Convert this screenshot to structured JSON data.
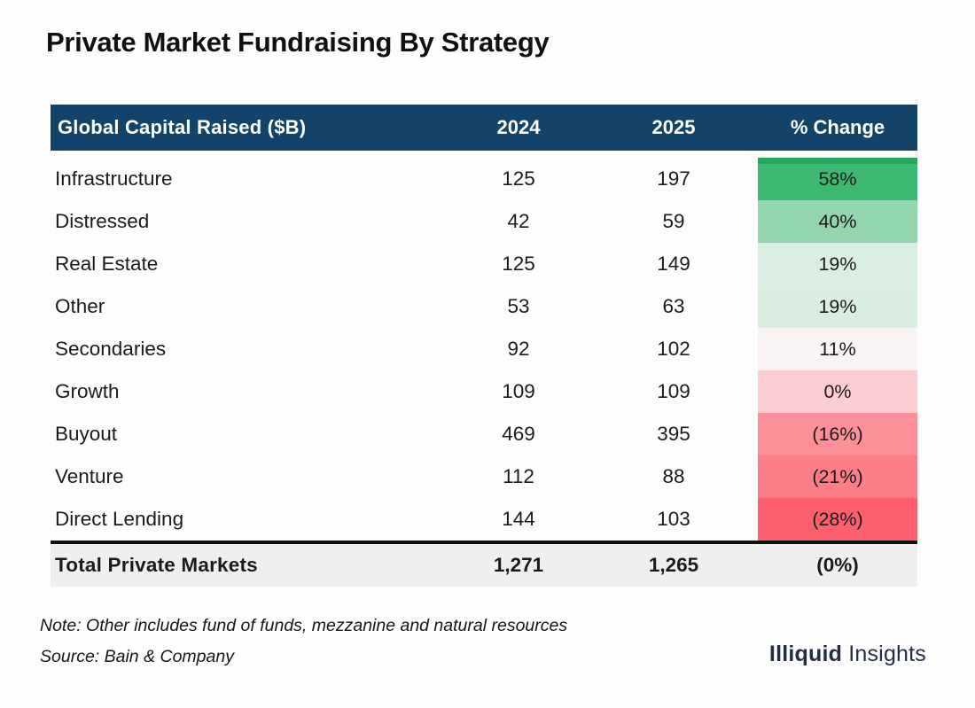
{
  "title": "Private Market Fundraising By Strategy",
  "table": {
    "columns": [
      "Global Capital Raised ($B)",
      "2024",
      "2025",
      "% Change"
    ],
    "rows": [
      {
        "label": "Infrastructure",
        "y2024": "125",
        "y2025": "197",
        "change": "58%",
        "bg": "#3cb873",
        "stripe": "#22a75e"
      },
      {
        "label": "Distressed",
        "y2024": "42",
        "y2025": "59",
        "change": "40%",
        "bg": "#93d5ad"
      },
      {
        "label": "Real Estate",
        "y2024": "125",
        "y2025": "149",
        "change": "19%",
        "bg": "#daefe3"
      },
      {
        "label": "Other",
        "y2024": "53",
        "y2025": "63",
        "change": "19%",
        "bg": "#d7eee1"
      },
      {
        "label": "Secondaries",
        "y2024": "92",
        "y2025": "102",
        "change": "11%",
        "bg": "#f9f3f4"
      },
      {
        "label": "Growth",
        "y2024": "109",
        "y2025": "109",
        "change": "0%",
        "bg": "#fbccd1"
      },
      {
        "label": "Buyout",
        "y2024": "469",
        "y2025": "395",
        "change": "(16%)",
        "bg": "#fc9099"
      },
      {
        "label": "Venture",
        "y2024": "112",
        "y2025": "88",
        "change": "(21%)",
        "bg": "#fb7e89"
      },
      {
        "label": "Direct Lending",
        "y2024": "144",
        "y2025": "103",
        "change": "(28%)",
        "bg": "#fc5f6e"
      }
    ],
    "total": {
      "label": "Total Private Markets",
      "y2024": "1,271",
      "y2025": "1,265",
      "change": "(0%)"
    }
  },
  "colors": {
    "header_bg": "#14436a",
    "header_text": "#ffffff",
    "total_bg": "#efeff0",
    "divider": "#101010",
    "brand_text": "#232e44"
  },
  "notes": {
    "note": "Note: Other includes fund of funds, mezzanine and natural resources",
    "source": "Source: Bain & Company"
  },
  "brand": {
    "bold": "Illiquid",
    "regular": "Insights"
  },
  "chart_data": {
    "type": "table",
    "title": "Private Market Fundraising By Strategy",
    "columns": [
      "Global Capital Raised ($B)",
      "2024",
      "2025",
      "% Change"
    ],
    "categories": [
      "Infrastructure",
      "Distressed",
      "Real Estate",
      "Other",
      "Secondaries",
      "Growth",
      "Buyout",
      "Venture",
      "Direct Lending"
    ],
    "series": [
      {
        "name": "2024",
        "values": [
          125,
          42,
          125,
          53,
          92,
          109,
          469,
          112,
          144
        ]
      },
      {
        "name": "2025",
        "values": [
          197,
          59,
          149,
          63,
          102,
          109,
          395,
          88,
          103
        ]
      },
      {
        "name": "% Change",
        "values": [
          58,
          40,
          19,
          19,
          11,
          0,
          -16,
          -21,
          -28
        ]
      }
    ],
    "totals": {
      "name": "Total Private Markets",
      "2024": 1271,
      "2025": 1265,
      "pct_change": 0
    },
    "note": "Other includes fund of funds, mezzanine and natural resources",
    "source": "Bain & Company",
    "color_coding": "green for positive % change, red for negative, intensity scales with magnitude"
  }
}
